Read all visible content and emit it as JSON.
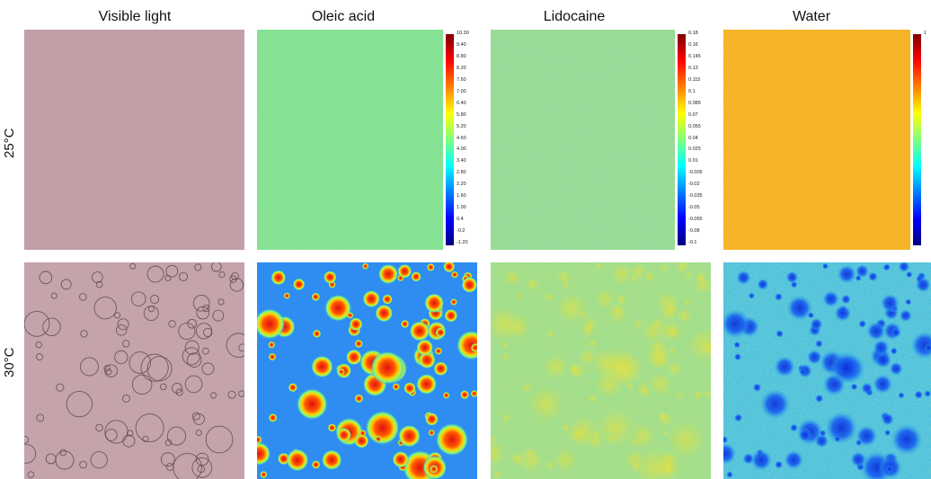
{
  "columns": [
    "Visible light",
    "Oleic acid",
    "Lidocaine",
    "Water"
  ],
  "rows": [
    "25°C",
    "30°C"
  ],
  "colorbars": {
    "oleic": [
      "10.30",
      "9.40",
      "8.80",
      "8.20",
      "7.60",
      "7.00",
      "6.40",
      "5.80",
      "5.20",
      "4.60",
      "4.00",
      "3.40",
      "2.80",
      "2.20",
      "1.60",
      "1.00",
      "0.4",
      "-0.2",
      "-1.20"
    ],
    "lidocaine": [
      "0.18",
      "0.16",
      "0.145",
      "0.13",
      "0.115",
      "0.1",
      "0.085",
      "0.07",
      "0.055",
      "0.04",
      "0.025",
      "0.01",
      "-0.005",
      "-0.02",
      "-0.035",
      "-0.05",
      "-0.065",
      "-0.08",
      "-0.1"
    ],
    "water_top": "1"
  },
  "colors": {
    "visible_light_bg": "#c2a2a9",
    "oleic_25_bg": "#7be08c",
    "lidocaine_25_bg": "#8fd38a",
    "water_25_bg": "#f0b21e",
    "oleic_30_bg": "#2f8cf0",
    "lidocaine_30_bg": "#a8d86a",
    "water_30_bg": "#34b6e6",
    "jet_stops": [
      "#00007f",
      "#0000ff",
      "#007fff",
      "#00ffff",
      "#7fff7f",
      "#ffff00",
      "#ff7f00",
      "#ff0000",
      "#7f0000"
    ]
  }
}
